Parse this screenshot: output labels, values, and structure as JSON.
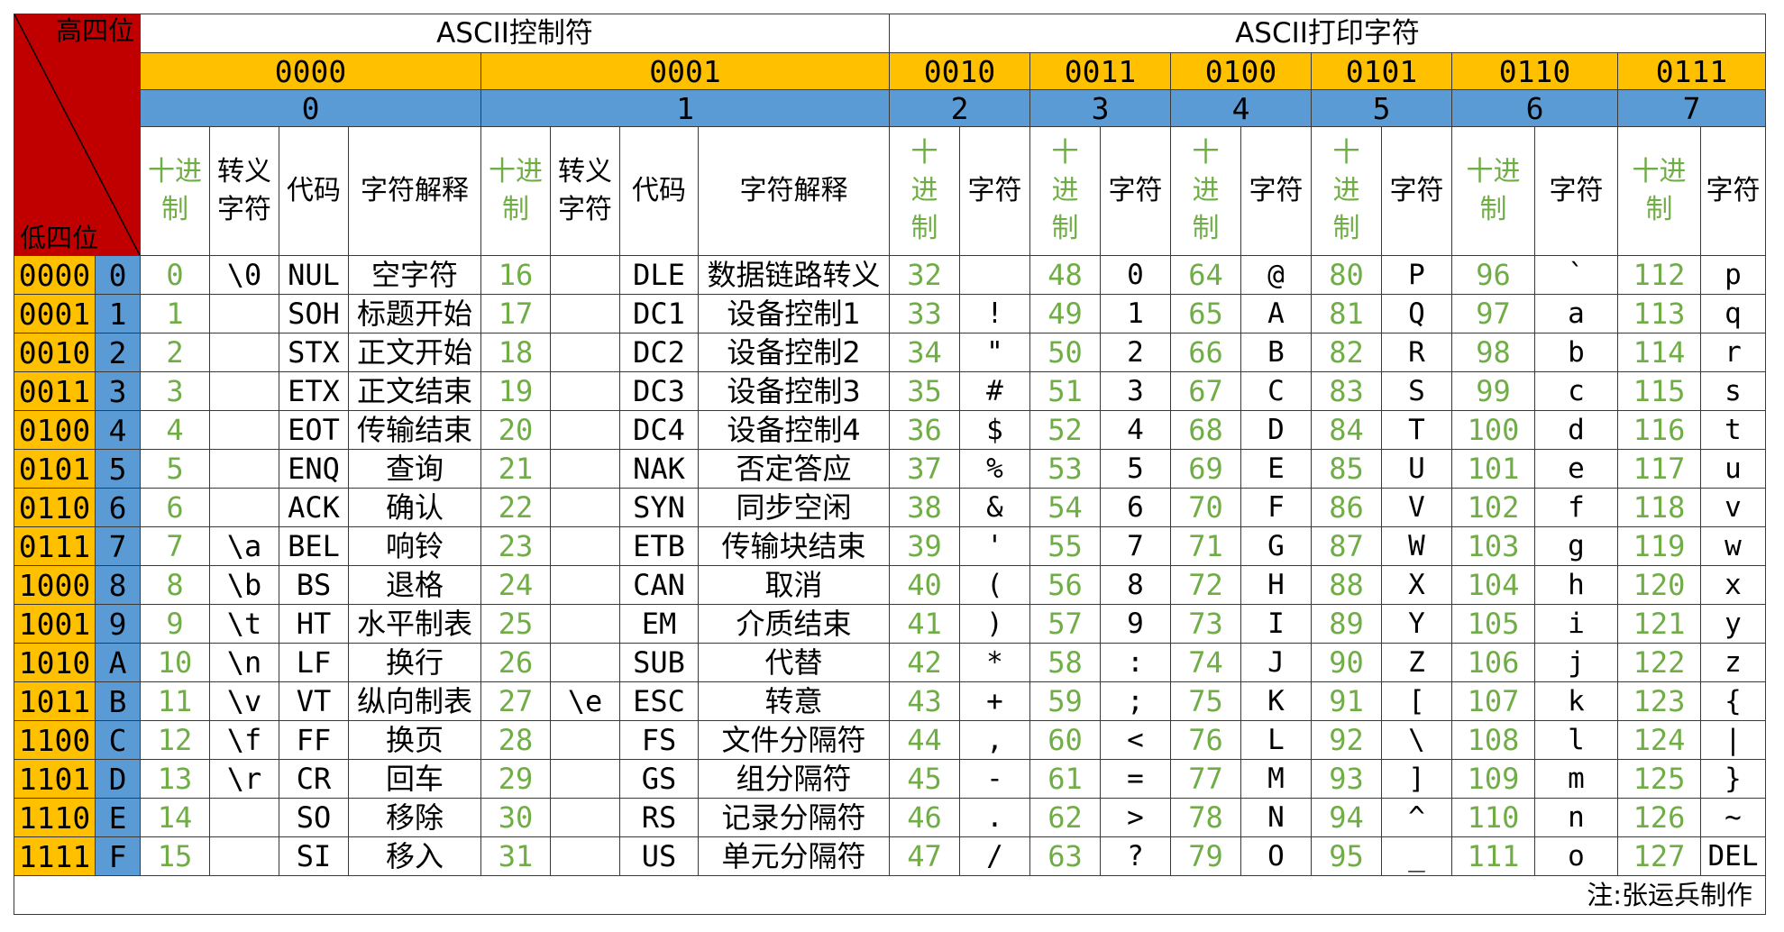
{
  "corner": {
    "high": "高四位",
    "low": "低四位"
  },
  "sections": {
    "control": "ASCII控制符",
    "printable": "ASCII打印字符"
  },
  "high_groups": [
    {
      "bin": "0000",
      "hex": "0"
    },
    {
      "bin": "0001",
      "hex": "1"
    },
    {
      "bin": "0010",
      "hex": "2"
    },
    {
      "bin": "0011",
      "hex": "3"
    },
    {
      "bin": "0100",
      "hex": "4"
    },
    {
      "bin": "0101",
      "hex": "5"
    },
    {
      "bin": "0110",
      "hex": "6"
    },
    {
      "bin": "0111",
      "hex": "7"
    }
  ],
  "subheaders": {
    "decimal": "十进制",
    "escape": "转义字符",
    "code": "代码",
    "meaning": "字符解释",
    "char": "字符"
  },
  "rows": [
    {
      "bin": "0000",
      "hex": "0",
      "c0": [
        "0",
        "\\0",
        "NUL",
        "空字符"
      ],
      "c1": [
        "16",
        "",
        "DLE",
        "数据链路转义"
      ],
      "p": [
        [
          "32",
          " "
        ],
        [
          "48",
          "0"
        ],
        [
          "64",
          "@"
        ],
        [
          "80",
          "P"
        ],
        [
          "96",
          "`"
        ],
        [
          "112",
          "p"
        ]
      ]
    },
    {
      "bin": "0001",
      "hex": "1",
      "c0": [
        "1",
        "",
        "SOH",
        "标题开始"
      ],
      "c1": [
        "17",
        "",
        "DC1",
        "设备控制1"
      ],
      "p": [
        [
          "33",
          "!"
        ],
        [
          "49",
          "1"
        ],
        [
          "65",
          "A"
        ],
        [
          "81",
          "Q"
        ],
        [
          "97",
          "a"
        ],
        [
          "113",
          "q"
        ]
      ]
    },
    {
      "bin": "0010",
      "hex": "2",
      "c0": [
        "2",
        "",
        "STX",
        "正文开始"
      ],
      "c1": [
        "18",
        "",
        "DC2",
        "设备控制2"
      ],
      "p": [
        [
          "34",
          "\""
        ],
        [
          "50",
          "2"
        ],
        [
          "66",
          "B"
        ],
        [
          "82",
          "R"
        ],
        [
          "98",
          "b"
        ],
        [
          "114",
          "r"
        ]
      ]
    },
    {
      "bin": "0011",
      "hex": "3",
      "c0": [
        "3",
        "",
        "ETX",
        "正文结束"
      ],
      "c1": [
        "19",
        "",
        "DC3",
        "设备控制3"
      ],
      "p": [
        [
          "35",
          "#"
        ],
        [
          "51",
          "3"
        ],
        [
          "67",
          "C"
        ],
        [
          "83",
          "S"
        ],
        [
          "99",
          "c"
        ],
        [
          "115",
          "s"
        ]
      ]
    },
    {
      "bin": "0100",
      "hex": "4",
      "c0": [
        "4",
        "",
        "EOT",
        "传输结束"
      ],
      "c1": [
        "20",
        "",
        "DC4",
        "设备控制4"
      ],
      "p": [
        [
          "36",
          "$"
        ],
        [
          "52",
          "4"
        ],
        [
          "68",
          "D"
        ],
        [
          "84",
          "T"
        ],
        [
          "100",
          "d"
        ],
        [
          "116",
          "t"
        ]
      ]
    },
    {
      "bin": "0101",
      "hex": "5",
      "c0": [
        "5",
        "",
        "ENQ",
        "查询"
      ],
      "c1": [
        "21",
        "",
        "NAK",
        "否定答应"
      ],
      "p": [
        [
          "37",
          "%"
        ],
        [
          "53",
          "5"
        ],
        [
          "69",
          "E"
        ],
        [
          "85",
          "U"
        ],
        [
          "101",
          "e"
        ],
        [
          "117",
          "u"
        ]
      ]
    },
    {
      "bin": "0110",
      "hex": "6",
      "c0": [
        "6",
        "",
        "ACK",
        "确认"
      ],
      "c1": [
        "22",
        "",
        "SYN",
        "同步空闲"
      ],
      "p": [
        [
          "38",
          "&"
        ],
        [
          "54",
          "6"
        ],
        [
          "70",
          "F"
        ],
        [
          "86",
          "V"
        ],
        [
          "102",
          "f"
        ],
        [
          "118",
          "v"
        ]
      ]
    },
    {
      "bin": "0111",
      "hex": "7",
      "c0": [
        "7",
        "\\a",
        "BEL",
        "响铃"
      ],
      "c1": [
        "23",
        "",
        "ETB",
        "传输块结束"
      ],
      "p": [
        [
          "39",
          "'"
        ],
        [
          "55",
          "7"
        ],
        [
          "71",
          "G"
        ],
        [
          "87",
          "W"
        ],
        [
          "103",
          "g"
        ],
        [
          "119",
          "w"
        ]
      ]
    },
    {
      "bin": "1000",
      "hex": "8",
      "c0": [
        "8",
        "\\b",
        "BS",
        "退格"
      ],
      "c1": [
        "24",
        "",
        "CAN",
        "取消"
      ],
      "p": [
        [
          "40",
          "("
        ],
        [
          "56",
          "8"
        ],
        [
          "72",
          "H"
        ],
        [
          "88",
          "X"
        ],
        [
          "104",
          "h"
        ],
        [
          "120",
          "x"
        ]
      ]
    },
    {
      "bin": "1001",
      "hex": "9",
      "c0": [
        "9",
        "\\t",
        "HT",
        "水平制表"
      ],
      "c1": [
        "25",
        "",
        "EM",
        "介质结束"
      ],
      "p": [
        [
          "41",
          ")"
        ],
        [
          "57",
          "9"
        ],
        [
          "73",
          "I"
        ],
        [
          "89",
          "Y"
        ],
        [
          "105",
          "i"
        ],
        [
          "121",
          "y"
        ]
      ]
    },
    {
      "bin": "1010",
      "hex": "A",
      "c0": [
        "10",
        "\\n",
        "LF",
        "换行"
      ],
      "c1": [
        "26",
        "",
        "SUB",
        "代替"
      ],
      "p": [
        [
          "42",
          "*"
        ],
        [
          "58",
          ":"
        ],
        [
          "74",
          "J"
        ],
        [
          "90",
          "Z"
        ],
        [
          "106",
          "j"
        ],
        [
          "122",
          "z"
        ]
      ]
    },
    {
      "bin": "1011",
      "hex": "B",
      "c0": [
        "11",
        "\\v",
        "VT",
        "纵向制表"
      ],
      "c1": [
        "27",
        "\\e",
        "ESC",
        "转意"
      ],
      "p": [
        [
          "43",
          "+"
        ],
        [
          "59",
          ";"
        ],
        [
          "75",
          "K"
        ],
        [
          "91",
          "["
        ],
        [
          "107",
          "k"
        ],
        [
          "123",
          "{"
        ]
      ]
    },
    {
      "bin": "1100",
      "hex": "C",
      "c0": [
        "12",
        "\\f",
        "FF",
        "换页"
      ],
      "c1": [
        "28",
        "",
        "FS",
        "文件分隔符"
      ],
      "p": [
        [
          "44",
          ","
        ],
        [
          "60",
          "<"
        ],
        [
          "76",
          "L"
        ],
        [
          "92",
          "\\"
        ],
        [
          "108",
          "l"
        ],
        [
          "124",
          "|"
        ]
      ]
    },
    {
      "bin": "1101",
      "hex": "D",
      "c0": [
        "13",
        "\\r",
        "CR",
        "回车"
      ],
      "c1": [
        "29",
        "",
        "GS",
        "组分隔符"
      ],
      "p": [
        [
          "45",
          "-"
        ],
        [
          "61",
          "="
        ],
        [
          "77",
          "M"
        ],
        [
          "93",
          "]"
        ],
        [
          "109",
          "m"
        ],
        [
          "125",
          "}"
        ]
      ]
    },
    {
      "bin": "1110",
      "hex": "E",
      "c0": [
        "14",
        "",
        "SO",
        "移除"
      ],
      "c1": [
        "30",
        "",
        "RS",
        "记录分隔符"
      ],
      "p": [
        [
          "46",
          "."
        ],
        [
          "62",
          ">"
        ],
        [
          "78",
          "N"
        ],
        [
          "94",
          "^"
        ],
        [
          "110",
          "n"
        ],
        [
          "126",
          "~"
        ]
      ]
    },
    {
      "bin": "1111",
      "hex": "F",
      "c0": [
        "15",
        "",
        "SI",
        "移入"
      ],
      "c1": [
        "31",
        "",
        "US",
        "单元分隔符"
      ],
      "p": [
        [
          "47",
          "/"
        ],
        [
          "63",
          "?"
        ],
        [
          "79",
          "O"
        ],
        [
          "95",
          "_"
        ],
        [
          "111",
          "o"
        ],
        [
          "127",
          "DEL"
        ]
      ]
    }
  ],
  "note": "注:张运兵制作",
  "colors": {
    "binary": "#ffc000",
    "hex": "#5b9bd5",
    "corner": "#c00000",
    "decimal_text": "#70ad47"
  }
}
